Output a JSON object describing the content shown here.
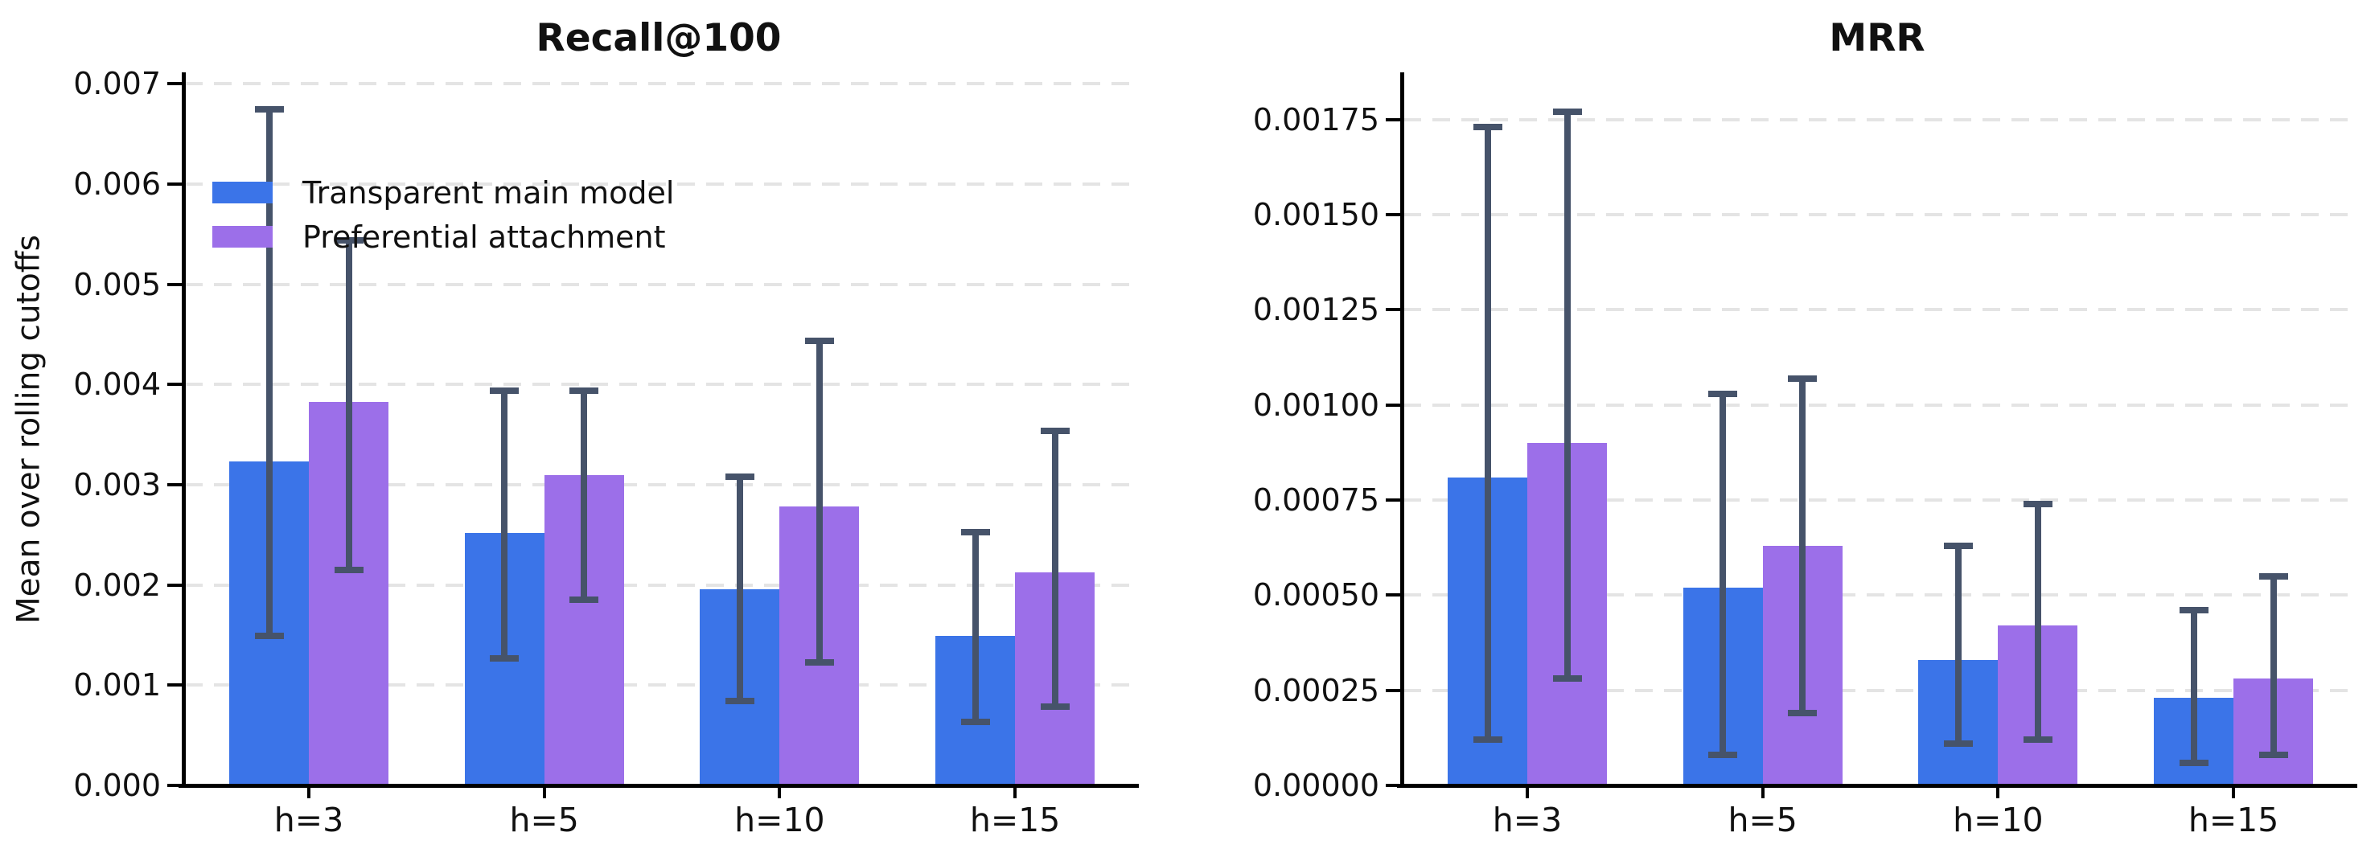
{
  "figure": {
    "background": "#ffffff",
    "axis_color": "#000000",
    "grid_color": "#e4e4e4",
    "error_bar_color": "#46536a",
    "ylabel": "Mean over rolling cutoffs",
    "legend": {
      "position": "upper left",
      "items": [
        {
          "label": "Transparent main model",
          "color": "#3b74e8"
        },
        {
          "label": "Preferential attachment",
          "color": "#9c6fe9"
        }
      ]
    },
    "xtick_labels": [
      "h=3",
      "h=5",
      "h=10",
      "h=15"
    ]
  },
  "chart_data": [
    {
      "type": "bar",
      "title": "Recall@100",
      "xlabel": "",
      "ylabel": "Mean over rolling cutoffs",
      "categories": [
        "h=3",
        "h=5",
        "h=10",
        "h=15"
      ],
      "ylim": [
        0,
        0.0071
      ],
      "ytick_labels": [
        "0.000",
        "0.001",
        "0.002",
        "0.003",
        "0.004",
        "0.005",
        "0.006",
        "0.007"
      ],
      "grid": true,
      "legend_position": "upper left",
      "series": [
        {
          "name": "Transparent main model",
          "color": "#3b74e8",
          "values": [
            0.00323,
            0.00252,
            0.00196,
            0.00149
          ],
          "err_low": [
            0.00149,
            0.00127,
            0.00084,
            0.00063
          ],
          "err_high": [
            0.00675,
            0.00394,
            0.00308,
            0.00253
          ]
        },
        {
          "name": "Preferential attachment",
          "color": "#9c6fe9",
          "values": [
            0.00383,
            0.0031,
            0.00278,
            0.00213
          ],
          "err_low": [
            0.00215,
            0.00185,
            0.00123,
            0.00079
          ],
          "err_high": [
            0.00544,
            0.00394,
            0.00444,
            0.00354
          ]
        }
      ]
    },
    {
      "type": "bar",
      "title": "MRR",
      "xlabel": "",
      "ylabel": "",
      "categories": [
        "h=3",
        "h=5",
        "h=10",
        "h=15"
      ],
      "ylim": [
        0,
        0.00187
      ],
      "ytick_labels": [
        "0.00000",
        "0.00025",
        "0.00050",
        "0.00075",
        "0.00100",
        "0.00125",
        "0.00150",
        "0.00175"
      ],
      "grid": true,
      "legend_position": "none",
      "series": [
        {
          "name": "Transparent main model",
          "color": "#3b74e8",
          "values": [
            0.00081,
            0.00052,
            0.00033,
            0.00023
          ],
          "err_low": [
            0.00012,
            8e-05,
            0.00011,
            6e-05
          ],
          "err_high": [
            0.00173,
            0.00103,
            0.00063,
            0.00046
          ]
        },
        {
          "name": "Preferential attachment",
          "color": "#9c6fe9",
          "values": [
            0.0009,
            0.00063,
            0.00042,
            0.00028
          ],
          "err_low": [
            0.00028,
            0.00019,
            0.00012,
            8e-05
          ],
          "err_high": [
            0.00177,
            0.00107,
            0.00074,
            0.00055
          ]
        }
      ]
    }
  ]
}
